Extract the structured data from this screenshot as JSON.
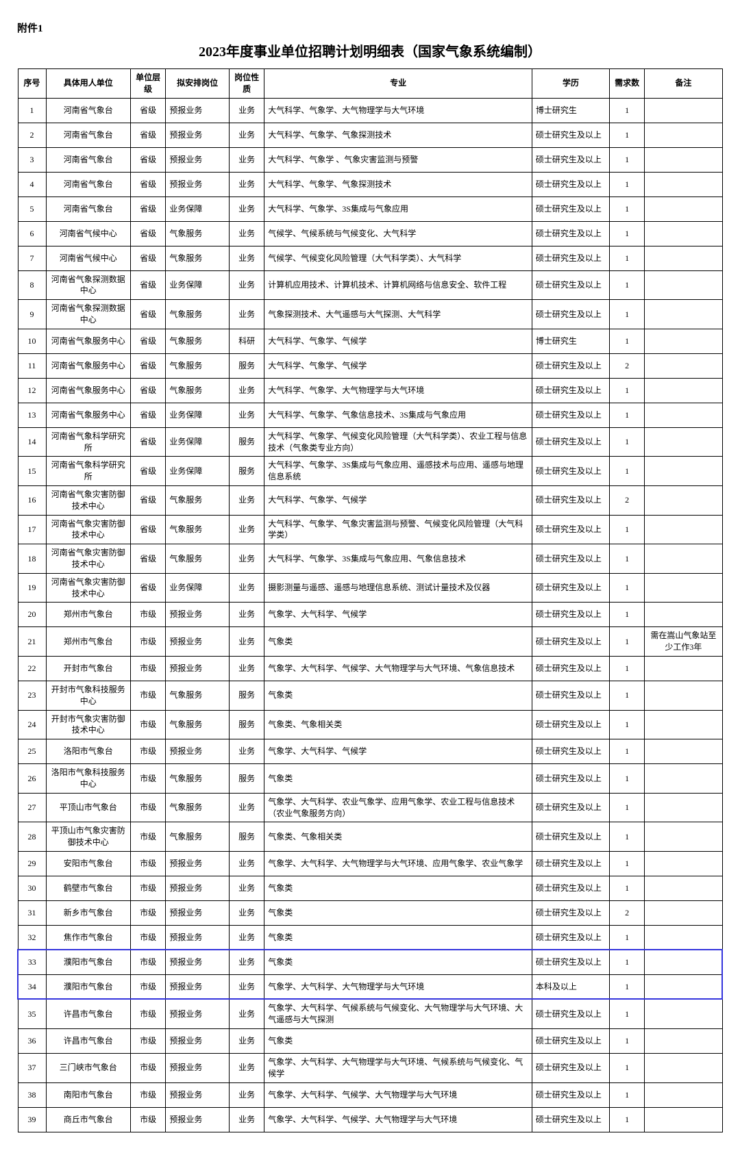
{
  "attachment_label": "附件1",
  "title": "2023年度事业单位招聘计划明细表（国家气象系统编制）",
  "headers": {
    "seq": "序号",
    "unit": "具体用人单位",
    "level": "单位层级",
    "position": "拟安排岗位",
    "nature": "岗位性质",
    "major": "专业",
    "education": "学历",
    "count": "需求数",
    "remark": "备注"
  },
  "highlight_rows": [
    33,
    34
  ],
  "rows": [
    {
      "seq": "1",
      "unit": "河南省气象台",
      "level": "省级",
      "position": "预报业务",
      "nature": "业务",
      "major": "大气科学、气象学、大气物理学与大气环境",
      "education": "博士研究生",
      "count": "1",
      "remark": ""
    },
    {
      "seq": "2",
      "unit": "河南省气象台",
      "level": "省级",
      "position": "预报业务",
      "nature": "业务",
      "major": "大气科学、气象学、气象探测技术",
      "education": "硕士研究生及以上",
      "count": "1",
      "remark": ""
    },
    {
      "seq": "3",
      "unit": "河南省气象台",
      "level": "省级",
      "position": "预报业务",
      "nature": "业务",
      "major": "大气科学、气象学 、气象灾害监测与预警",
      "education": "硕士研究生及以上",
      "count": "1",
      "remark": ""
    },
    {
      "seq": "4",
      "unit": "河南省气象台",
      "level": "省级",
      "position": "预报业务",
      "nature": "业务",
      "major": "大气科学、气象学、气象探测技术",
      "education": "硕士研究生及以上",
      "count": "1",
      "remark": ""
    },
    {
      "seq": "5",
      "unit": "河南省气象台",
      "level": "省级",
      "position": "业务保障",
      "nature": "业务",
      "major": "大气科学、气象学、3S集成与气象应用",
      "education": "硕士研究生及以上",
      "count": "1",
      "remark": ""
    },
    {
      "seq": "6",
      "unit": "河南省气候中心",
      "level": "省级",
      "position": "气象服务",
      "nature": "业务",
      "major": "气候学、气候系统与气候变化、大气科学",
      "education": "硕士研究生及以上",
      "count": "1",
      "remark": ""
    },
    {
      "seq": "7",
      "unit": "河南省气候中心",
      "level": "省级",
      "position": "气象服务",
      "nature": "业务",
      "major": "气候学、气候变化风险管理（大气科学类）、大气科学",
      "education": "硕士研究生及以上",
      "count": "1",
      "remark": ""
    },
    {
      "seq": "8",
      "unit": "河南省气象探测数据中心",
      "level": "省级",
      "position": "业务保障",
      "nature": "业务",
      "major": "计算机应用技术、计算机技术、计算机网络与信息安全、软件工程",
      "education": "硕士研究生及以上",
      "count": "1",
      "remark": ""
    },
    {
      "seq": "9",
      "unit": "河南省气象探测数据中心",
      "level": "省级",
      "position": "气象服务",
      "nature": "业务",
      "major": "气象探测技术、大气遥感与大气探测、大气科学",
      "education": "硕士研究生及以上",
      "count": "1",
      "remark": ""
    },
    {
      "seq": "10",
      "unit": "河南省气象服务中心",
      "level": "省级",
      "position": "气象服务",
      "nature": "科研",
      "major": "大气科学、气象学、气候学",
      "education": "博士研究生",
      "count": "1",
      "remark": ""
    },
    {
      "seq": "11",
      "unit": "河南省气象服务中心",
      "level": "省级",
      "position": "气象服务",
      "nature": "服务",
      "major": "大气科学、气象学、气候学",
      "education": "硕士研究生及以上",
      "count": "2",
      "remark": ""
    },
    {
      "seq": "12",
      "unit": "河南省气象服务中心",
      "level": "省级",
      "position": "气象服务",
      "nature": "业务",
      "major": "大气科学、气象学、大气物理学与大气环境",
      "education": "硕士研究生及以上",
      "count": "1",
      "remark": ""
    },
    {
      "seq": "13",
      "unit": "河南省气象服务中心",
      "level": "省级",
      "position": "业务保障",
      "nature": "业务",
      "major": "大气科学、气象学、气象信息技术、3S集成与气象应用",
      "education": "硕士研究生及以上",
      "count": "1",
      "remark": ""
    },
    {
      "seq": "14",
      "unit": "河南省气象科学研究所",
      "level": "省级",
      "position": "业务保障",
      "nature": "服务",
      "major": "大气科学、气象学、气候变化风险管理（大气科学类）、农业工程与信息技术（气象类专业方向）",
      "education": "硕士研究生及以上",
      "count": "1",
      "remark": ""
    },
    {
      "seq": "15",
      "unit": "河南省气象科学研究所",
      "level": "省级",
      "position": "业务保障",
      "nature": "服务",
      "major": "大气科学、气象学、3S集成与气象应用、遥感技术与应用、遥感与地理信息系统",
      "education": "硕士研究生及以上",
      "count": "1",
      "remark": ""
    },
    {
      "seq": "16",
      "unit": "河南省气象灾害防御技术中心",
      "level": "省级",
      "position": "气象服务",
      "nature": "业务",
      "major": "大气科学、气象学、气候学",
      "education": "硕士研究生及以上",
      "count": "2",
      "remark": ""
    },
    {
      "seq": "17",
      "unit": "河南省气象灾害防御技术中心",
      "level": "省级",
      "position": "气象服务",
      "nature": "业务",
      "major": "大气科学、气象学、气象灾害监测与预警、气候变化风险管理（大气科学类）",
      "education": "硕士研究生及以上",
      "count": "1",
      "remark": ""
    },
    {
      "seq": "18",
      "unit": "河南省气象灾害防御技术中心",
      "level": "省级",
      "position": "气象服务",
      "nature": "业务",
      "major": "大气科学、气象学、3S集成与气象应用、气象信息技术",
      "education": "硕士研究生及以上",
      "count": "1",
      "remark": ""
    },
    {
      "seq": "19",
      "unit": "河南省气象灾害防御技术中心",
      "level": "省级",
      "position": "业务保障",
      "nature": "业务",
      "major": "摄影测量与遥感、遥感与地理信息系统、测试计量技术及仪器",
      "education": "硕士研究生及以上",
      "count": "1",
      "remark": ""
    },
    {
      "seq": "20",
      "unit": "郑州市气象台",
      "level": "市级",
      "position": "预报业务",
      "nature": "业务",
      "major": "气象学、大气科学、气候学",
      "education": "硕士研究生及以上",
      "count": "1",
      "remark": ""
    },
    {
      "seq": "21",
      "unit": "郑州市气象台",
      "level": "市级",
      "position": "预报业务",
      "nature": "业务",
      "major": "气象类",
      "education": "硕士研究生及以上",
      "count": "1",
      "remark": "需在嵩山气象站至少工作3年"
    },
    {
      "seq": "22",
      "unit": "开封市气象台",
      "level": "市级",
      "position": "预报业务",
      "nature": "业务",
      "major": "气象学、大气科学、气候学、大气物理学与大气环境、气象信息技术",
      "education": "硕士研究生及以上",
      "count": "1",
      "remark": ""
    },
    {
      "seq": "23",
      "unit": "开封市气象科技服务中心",
      "level": "市级",
      "position": "气象服务",
      "nature": "服务",
      "major": "气象类",
      "education": "硕士研究生及以上",
      "count": "1",
      "remark": ""
    },
    {
      "seq": "24",
      "unit": "开封市气象灾害防御技术中心",
      "level": "市级",
      "position": "气象服务",
      "nature": "服务",
      "major": "气象类、气象相关类",
      "education": "硕士研究生及以上",
      "count": "1",
      "remark": ""
    },
    {
      "seq": "25",
      "unit": "洛阳市气象台",
      "level": "市级",
      "position": "预报业务",
      "nature": "业务",
      "major": "气象学、大气科学、气候学",
      "education": "硕士研究生及以上",
      "count": "1",
      "remark": ""
    },
    {
      "seq": "26",
      "unit": "洛阳市气象科技服务中心",
      "level": "市级",
      "position": "气象服务",
      "nature": "服务",
      "major": "气象类",
      "education": "硕士研究生及以上",
      "count": "1",
      "remark": ""
    },
    {
      "seq": "27",
      "unit": "平顶山市气象台",
      "level": "市级",
      "position": "气象服务",
      "nature": "业务",
      "major": "气象学、大气科学、农业气象学、应用气象学、农业工程与信息技术（农业气象服务方向）",
      "education": "硕士研究生及以上",
      "count": "1",
      "remark": ""
    },
    {
      "seq": "28",
      "unit": "平顶山市气象灾害防御技术中心",
      "level": "市级",
      "position": "气象服务",
      "nature": "服务",
      "major": "气象类、气象相关类",
      "education": "硕士研究生及以上",
      "count": "1",
      "remark": ""
    },
    {
      "seq": "29",
      "unit": "安阳市气象台",
      "level": "市级",
      "position": "预报业务",
      "nature": "业务",
      "major": "气象学、大气科学、大气物理学与大气环境、应用气象学、农业气象学",
      "education": "硕士研究生及以上",
      "count": "1",
      "remark": ""
    },
    {
      "seq": "30",
      "unit": "鹤壁市气象台",
      "level": "市级",
      "position": "预报业务",
      "nature": "业务",
      "major": "气象类",
      "education": "硕士研究生及以上",
      "count": "1",
      "remark": ""
    },
    {
      "seq": "31",
      "unit": "新乡市气象台",
      "level": "市级",
      "position": "预报业务",
      "nature": "业务",
      "major": "气象类",
      "education": "硕士研究生及以上",
      "count": "2",
      "remark": ""
    },
    {
      "seq": "32",
      "unit": "焦作市气象台",
      "level": "市级",
      "position": "预报业务",
      "nature": "业务",
      "major": "气象类",
      "education": "硕士研究生及以上",
      "count": "1",
      "remark": ""
    },
    {
      "seq": "33",
      "unit": "濮阳市气象台",
      "level": "市级",
      "position": "预报业务",
      "nature": "业务",
      "major": "气象类",
      "education": "硕士研究生及以上",
      "count": "1",
      "remark": ""
    },
    {
      "seq": "34",
      "unit": "濮阳市气象台",
      "level": "市级",
      "position": "预报业务",
      "nature": "业务",
      "major": "气象学、大气科学、大气物理学与大气环境",
      "education": "本科及以上",
      "count": "1",
      "remark": ""
    },
    {
      "seq": "35",
      "unit": "许昌市气象台",
      "level": "市级",
      "position": "预报业务",
      "nature": "业务",
      "major": "气象学、大气科学、气候系统与气候变化、大气物理学与大气环境、大气遥感与大气探测",
      "education": "硕士研究生及以上",
      "count": "1",
      "remark": ""
    },
    {
      "seq": "36",
      "unit": "许昌市气象台",
      "level": "市级",
      "position": "预报业务",
      "nature": "业务",
      "major": "气象类",
      "education": "硕士研究生及以上",
      "count": "1",
      "remark": ""
    },
    {
      "seq": "37",
      "unit": "三门峡市气象台",
      "level": "市级",
      "position": "预报业务",
      "nature": "业务",
      "major": "气象学、大气科学、大气物理学与大气环境、气候系统与气候变化、气候学",
      "education": "硕士研究生及以上",
      "count": "1",
      "remark": ""
    },
    {
      "seq": "38",
      "unit": "南阳市气象台",
      "level": "市级",
      "position": "预报业务",
      "nature": "业务",
      "major": "气象学、大气科学、气候学、大气物理学与大气环境",
      "education": "硕士研究生及以上",
      "count": "1",
      "remark": ""
    },
    {
      "seq": "39",
      "unit": "商丘市气象台",
      "level": "市级",
      "position": "预报业务",
      "nature": "业务",
      "major": "气象学、大气科学、气候学、大气物理学与大气环境",
      "education": "硕士研究生及以上",
      "count": "1",
      "remark": ""
    }
  ]
}
